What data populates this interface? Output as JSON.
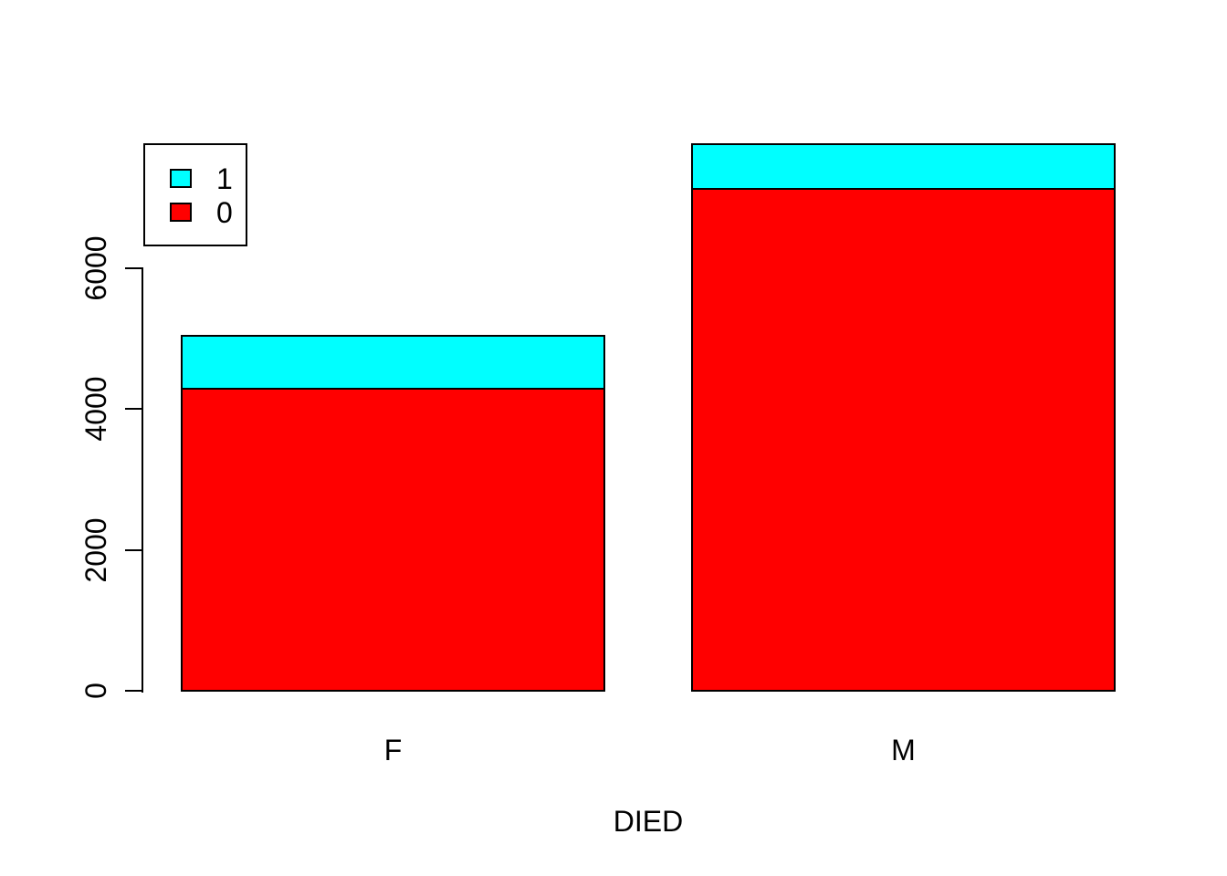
{
  "chart_data": {
    "type": "bar",
    "stacked": true,
    "title": "",
    "xlabel": "DIED",
    "ylabel": "",
    "categories": [
      "F",
      "M"
    ],
    "series": [
      {
        "name": "0",
        "color": "#FF0000",
        "values": [
          4290,
          7130
        ]
      },
      {
        "name": "1",
        "color": "#00FFFF",
        "values": [
          780,
          660
        ]
      }
    ],
    "stack_order_bottom_to_top": [
      "0",
      "1"
    ],
    "ylim": [
      0,
      6000
    ],
    "yticks": [
      0,
      2000,
      4000,
      6000
    ],
    "grid": false,
    "legend": {
      "position": "top-left",
      "entries": [
        {
          "label": "1",
          "color": "#00FFFF"
        },
        {
          "label": "0",
          "color": "#FF0000"
        }
      ]
    },
    "colors": {
      "axis": "#000000",
      "background": "#FFFFFF",
      "bar_border": "#000000"
    }
  }
}
